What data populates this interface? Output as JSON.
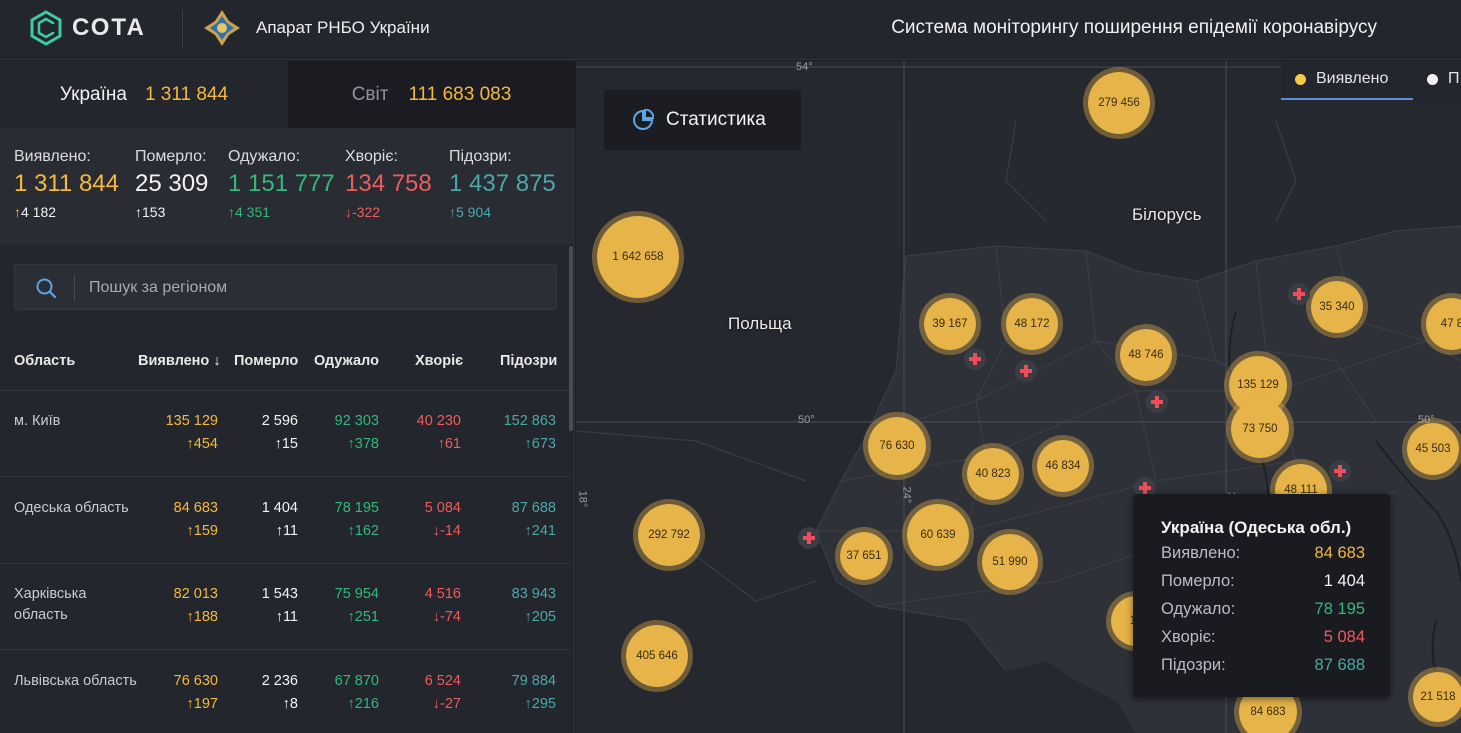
{
  "header": {
    "brand": "СОТА",
    "org": "Апарат РНБО України",
    "title": "Система моніторингу поширення епідемії коронавірусу"
  },
  "tabs": {
    "ukraine": {
      "label": "Україна",
      "value": "1 311 844"
    },
    "world": {
      "label": "Світ",
      "value": "111 683 083"
    }
  },
  "summary": {
    "detected": {
      "label": "Виявлено:",
      "value": "1 311 844",
      "delta": "4 182"
    },
    "died": {
      "label": "Померло:",
      "value": "25 309",
      "delta": "153"
    },
    "recovered": {
      "label": "Одужало:",
      "value": "1 151 777",
      "delta": "4 351"
    },
    "sick": {
      "label": "Хворіє:",
      "value": "134 758",
      "delta": "-322"
    },
    "suspected": {
      "label": "Підозри:",
      "value": "1 437 875",
      "delta": "5 904"
    }
  },
  "search": {
    "placeholder": "Пошук за регіоном"
  },
  "table": {
    "headers": {
      "region": "Область",
      "detected": "Виявлено",
      "died": "Померло",
      "recovered": "Одужало",
      "sick": "Хворіє",
      "suspected": "Підозри"
    },
    "rows": [
      {
        "name": "м. Київ",
        "detected": "135 129",
        "detected_d": "454",
        "died": "2 596",
        "died_d": "15",
        "recovered": "92 303",
        "recovered_d": "378",
        "sick": "40 230",
        "sick_d": "61",
        "suspected": "152 863",
        "suspected_d": "673"
      },
      {
        "name": "Одеська область",
        "detected": "84 683",
        "detected_d": "159",
        "died": "1 404",
        "died_d": "11",
        "recovered": "78 195",
        "recovered_d": "162",
        "sick": "5 084",
        "sick_d": "-14",
        "suspected": "87 688",
        "suspected_d": "241"
      },
      {
        "name": "Харківська область",
        "detected": "82 013",
        "detected_d": "188",
        "died": "1 543",
        "died_d": "11",
        "recovered": "75 954",
        "recovered_d": "251",
        "sick": "4 516",
        "sick_d": "-74",
        "suspected": "83 943",
        "suspected_d": "205"
      },
      {
        "name": "Львівська область",
        "detected": "76 630",
        "detected_d": "197",
        "died": "2 236",
        "died_d": "8",
        "recovered": "67 870",
        "recovered_d": "216",
        "sick": "6 524",
        "sick_d": "-27",
        "suspected": "79 884",
        "suspected_d": "295"
      }
    ]
  },
  "map": {
    "stat_button": "Статистика",
    "legend": {
      "detected": "Виявлено",
      "other": "П"
    },
    "labels": {
      "belarus": "Білорусь",
      "poland": "Польща"
    },
    "grid": {
      "lat54": "54°",
      "lat50": "50°",
      "lat50b": "50°",
      "lon24": "24°",
      "lon18": "18°",
      "lon3x": "3"
    },
    "bubbles": [
      "279 456",
      "1 642 658",
      "39 167",
      "48 172",
      "48 746",
      "35 340",
      "47 8",
      "135 129",
      "73 750",
      "45 503",
      "76 630",
      "40 823",
      "46 834",
      "48 111",
      "292 792",
      "60 639",
      "37 651",
      "51 990",
      "405 646",
      "17",
      "21 518",
      "84 683"
    ],
    "tooltip": {
      "title": "Україна (Одеська обл.)",
      "detected_label": "Виявлено:",
      "detected": "84 683",
      "died_label": "Померло:",
      "died": "1 404",
      "recovered_label": "Одужало:",
      "recovered": "78 195",
      "sick_label": "Хворіє:",
      "sick": "5 084",
      "suspected_label": "Підозри:",
      "suspected": "87 688"
    }
  },
  "colors": {
    "detected": "#f5b93c",
    "died": "#f2f2f2",
    "recovered": "#32b87c",
    "sick": "#ef5b5b",
    "suspected": "#4aa8a8",
    "bubble": "#e6b448"
  }
}
